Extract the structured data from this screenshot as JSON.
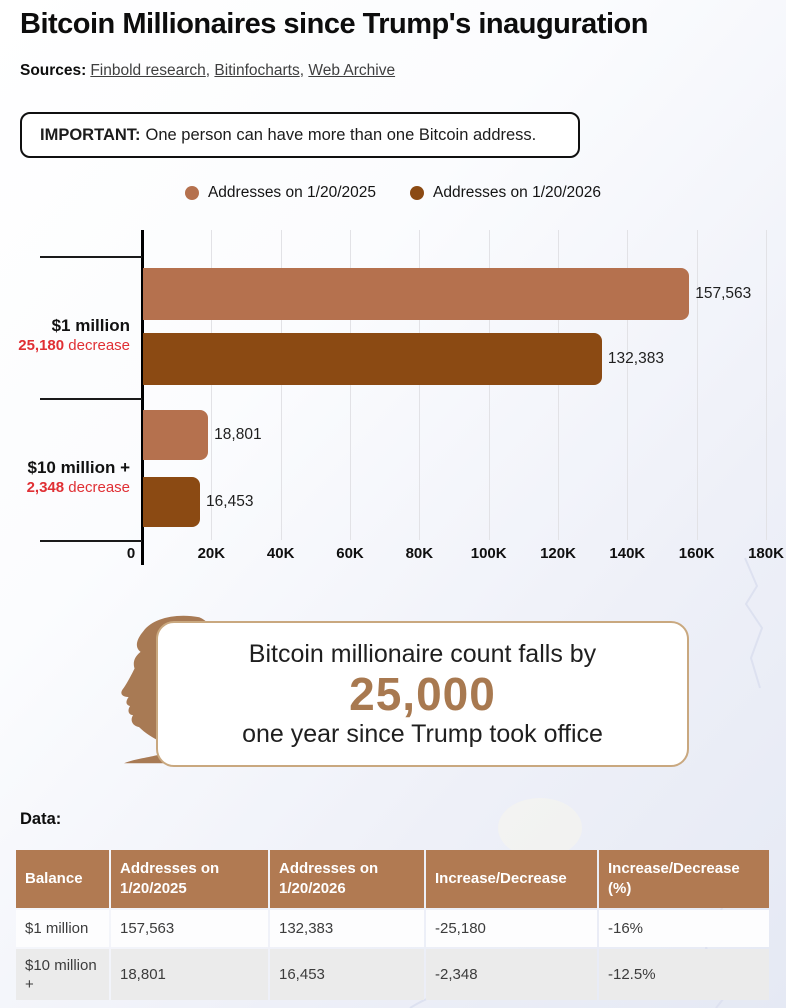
{
  "title": "Bitcoin Millionaires since Trump's inauguration",
  "sources": {
    "label": "Sources:",
    "links": [
      "Finbold research",
      "Bitinfocharts",
      "Web Archive"
    ]
  },
  "notice": {
    "bold": "IMPORTANT:",
    "text": "One person can have more than one Bitcoin address."
  },
  "legend": [
    {
      "label": "Addresses on 1/20/2025",
      "color": "#b5714e"
    },
    {
      "label": "Addresses on 1/20/2026",
      "color": "#8b4a13"
    }
  ],
  "chart_data": {
    "type": "bar",
    "orientation": "horizontal",
    "title": "",
    "categories": [
      "$1 million",
      "$10 million +"
    ],
    "category_sublabels": [
      {
        "number": "25,180",
        "word": "decrease"
      },
      {
        "number": "2,348",
        "word": "decrease"
      }
    ],
    "series": [
      {
        "name": "Addresses on 1/20/2025",
        "color": "#b5714e",
        "values": [
          157563,
          18801
        ],
        "labels": [
          "157,563",
          "18,801"
        ]
      },
      {
        "name": "Addresses on 1/20/2026",
        "color": "#8b4a13",
        "values": [
          132383,
          16453
        ],
        "labels": [
          "132,383",
          "16,453"
        ]
      }
    ],
    "xlim": [
      0,
      180000
    ],
    "x_ticks": [
      {
        "value": 0,
        "label": "0"
      },
      {
        "value": 20000,
        "label": "20K"
      },
      {
        "value": 40000,
        "label": "40K"
      },
      {
        "value": 60000,
        "label": "60K"
      },
      {
        "value": 80000,
        "label": "80K"
      },
      {
        "value": 100000,
        "label": "100K"
      },
      {
        "value": 120000,
        "label": "120K"
      },
      {
        "value": 140000,
        "label": "140K"
      },
      {
        "value": 160000,
        "label": "160K"
      },
      {
        "value": 180000,
        "label": "180K"
      }
    ],
    "grid": "vertical",
    "legend_position": "top"
  },
  "callout": {
    "line1": "Bitcoin millionaire count falls by",
    "number": "25,000",
    "line2": "one year since Trump took office"
  },
  "data_label": "Data:",
  "table": {
    "headers": [
      "Balance",
      "Addresses on 1/20/2025",
      "Addresses on 1/20/2026",
      "Increase/Decrease",
      "Increase/Decrease (%)"
    ],
    "rows": [
      [
        "$1 million",
        "157,563",
        "132,383",
        "-25,180",
        "-16%"
      ],
      [
        "$10 million +",
        "18,801",
        "16,453",
        "-2,348",
        "-12.5%"
      ]
    ]
  },
  "colors": {
    "series_2025": "#b5714e",
    "series_2026": "#8b4a13",
    "decrease_red": "#e02f34",
    "callout_brown": "#a87950",
    "callout_border": "#c9a87f",
    "table_header": "#b17a52",
    "row_alt": "#ebebeb"
  }
}
